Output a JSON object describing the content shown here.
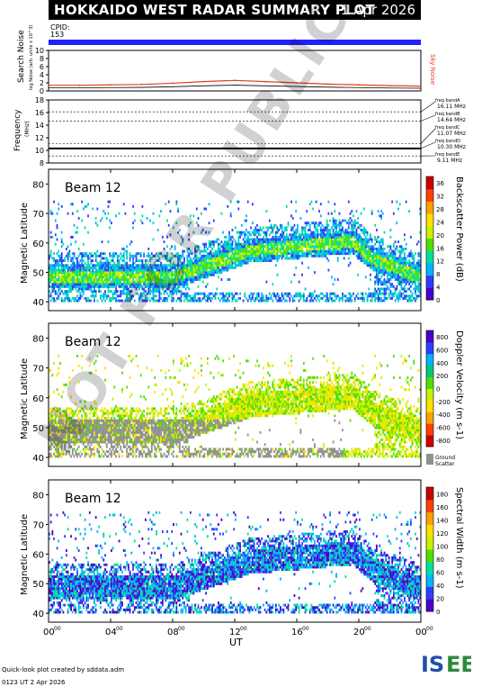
{
  "header": {
    "title": "HOKKAIDO WEST RADAR SUMMARY PLOT",
    "date": "1 Apr 2026"
  },
  "cpid": {
    "label": "CPID:",
    "value": "153"
  },
  "watermark": "NOT FOR PUBLICATION",
  "footer": {
    "line1": "Quick-look plot created by sddata.adm",
    "line2": "0123 UT 2 Apr 2026"
  },
  "logo": {
    "text": "ISEE",
    "colors": [
      "#2b8a3e",
      "#1f4fa8"
    ]
  },
  "chart_data": [
    {
      "type": "line",
      "name": "noise",
      "ylabel": "Search Noise",
      "ylabel_sub": "log Noise (arb. units x 10^3)",
      "ylim": [
        0,
        10
      ],
      "yticks": [
        0,
        2,
        4,
        6,
        8,
        10
      ],
      "legend": "Sky Noise",
      "color": "#e0401a",
      "x_hours": [
        0,
        2,
        4,
        6,
        8,
        10,
        12,
        14,
        16,
        18,
        20,
        22,
        24
      ],
      "values": [
        1.4,
        1.4,
        1.5,
        1.6,
        1.9,
        2.3,
        2.6,
        2.3,
        2.0,
        1.7,
        1.5,
        1.3,
        1.2
      ]
    },
    {
      "type": "line",
      "name": "frequency",
      "ylabel": "Frequency",
      "ylabel_sub": "(MHz)",
      "ylim": [
        8,
        18
      ],
      "yticks": [
        8,
        10,
        12,
        14,
        16,
        18
      ],
      "bands": [
        {
          "label": "freq bandA",
          "value": "16.11 MHz"
        },
        {
          "label": "freq bandB",
          "value": "14.64 MHz"
        },
        {
          "label": "freq bandC",
          "value": "11.07 MHz"
        },
        {
          "label": "freq bandD",
          "value": "10.30 MHz"
        },
        {
          "label": "freq bandE",
          "value": "9.11 MHz"
        }
      ],
      "operating": 10.3
    },
    {
      "type": "heatmap",
      "beam": "Beam 12",
      "ylabel": "Magnetic Latitude",
      "ylim": [
        37,
        85
      ],
      "yticks": [
        40,
        50,
        60,
        70,
        80
      ],
      "colorbar": {
        "label": "Backscatter Power (dB)",
        "ticks": [
          0,
          4,
          8,
          12,
          16,
          20,
          24,
          28,
          32,
          36
        ],
        "range": [
          0,
          38
        ],
        "colors": [
          "#4a00c8",
          "#2f3dff",
          "#00b4ff",
          "#00e0a0",
          "#50e000",
          "#c8f000",
          "#ffe000",
          "#ffa000",
          "#ff4000",
          "#c80000"
        ]
      }
    },
    {
      "type": "heatmap",
      "beam": "Beam 12",
      "ylabel": "Magnetic Latitude",
      "ylim": [
        37,
        85
      ],
      "yticks": [
        40,
        50,
        60,
        70,
        80
      ],
      "colorbar": {
        "label": "Doppler Velocity (m s-1)",
        "ticks": [
          -800,
          -600,
          -400,
          -200,
          0,
          200,
          400,
          600,
          800
        ],
        "range": [
          -900,
          900
        ],
        "colors": [
          "#c80000",
          "#ff4000",
          "#ffa000",
          "#ffe000",
          "#c8f000",
          "#50e000",
          "#00c87a",
          "#00b4ff",
          "#2f3dff",
          "#4a00c8"
        ]
      },
      "ground_scatter_label": "Ground Scatter"
    },
    {
      "type": "heatmap",
      "beam": "Beam 12",
      "ylabel": "Magnetic Latitude",
      "ylim": [
        37,
        85
      ],
      "yticks": [
        40,
        50,
        60,
        70,
        80
      ],
      "colorbar": {
        "label": "Spectral Width (m s-1)",
        "ticks": [
          0,
          20,
          40,
          60,
          80,
          100,
          120,
          140,
          160,
          180
        ],
        "range": [
          0,
          190
        ],
        "colors": [
          "#4a00c8",
          "#2f3dff",
          "#00b4ff",
          "#00e0a0",
          "#50e000",
          "#c8f000",
          "#ffe000",
          "#ffa000",
          "#ff4000",
          "#c80000"
        ]
      }
    }
  ],
  "xaxis": {
    "label": "UT",
    "ticks": [
      "00",
      "04",
      "08",
      "12",
      "16",
      "20",
      "00"
    ],
    "tick_sup": "00",
    "range_hours": [
      0,
      24
    ]
  }
}
